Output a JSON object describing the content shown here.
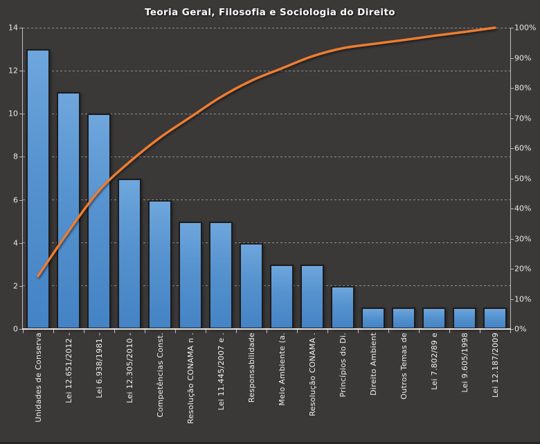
{
  "title": "Teoria Geral, Filosofia e Sociologia do Direito",
  "chart_data": {
    "type": "bar",
    "subtype": "pareto",
    "title": "Teoria Geral, Filosofia e Sociologia do Direito",
    "categories": [
      "Unidades de Conserva",
      "Lei 12.651/2012 -",
      "Lei 6.938/1981 -",
      "Lei 12.305/2010 -",
      "Competências Const.",
      "Resolução CONAMA n .",
      "Lei 11.445/2007 e .",
      "Responsabilidade",
      "Meio Ambiente (a.",
      "Resolução CONAMA .",
      "Princípios do Di.",
      "Direito Ambient",
      "Outros Temas de",
      "Lei 7.802/89 e",
      "Lei 9.605/1998",
      "Lei 12.187/2009"
    ],
    "series": [
      {
        "name": "frequency-bars",
        "type": "bar",
        "axis": "left",
        "values": [
          13,
          11,
          10,
          7,
          6,
          5,
          5,
          4,
          3,
          3,
          2,
          1,
          1,
          1,
          1,
          1
        ]
      },
      {
        "name": "cumulative-percent-line",
        "type": "line",
        "axis": "right",
        "values": [
          17.6,
          32.4,
          45.9,
          55.4,
          63.5,
          70.3,
          77.0,
          82.4,
          86.5,
          90.5,
          93.2,
          94.6,
          95.9,
          97.3,
          98.6,
          100
        ]
      }
    ],
    "left_axis": {
      "min": 0,
      "max": 14,
      "step": 2,
      "tick_labels": [
        "0",
        "2",
        "4",
        "6",
        "8",
        "10",
        "12",
        "14"
      ]
    },
    "right_axis": {
      "min": 0,
      "max": 100,
      "step": 10,
      "tick_labels": [
        "0%",
        "10%",
        "20%",
        "30%",
        "40%",
        "50%",
        "60%",
        "70%",
        "80%",
        "90%",
        "100%"
      ]
    },
    "grid": true,
    "legend": false,
    "colors": {
      "background": "#3B3838",
      "bar_gradient_top": "#6FA6DD",
      "bar_gradient_mid": "#5592CE",
      "bar_gradient_bottom": "#4483C5",
      "bar_border": "#1B1B1B",
      "line": "#ED7D31",
      "grid": "#DBDBDB",
      "axis": "#BFBFBF",
      "text": "#F2F2F2",
      "title_text": "#FFFFFF"
    }
  }
}
